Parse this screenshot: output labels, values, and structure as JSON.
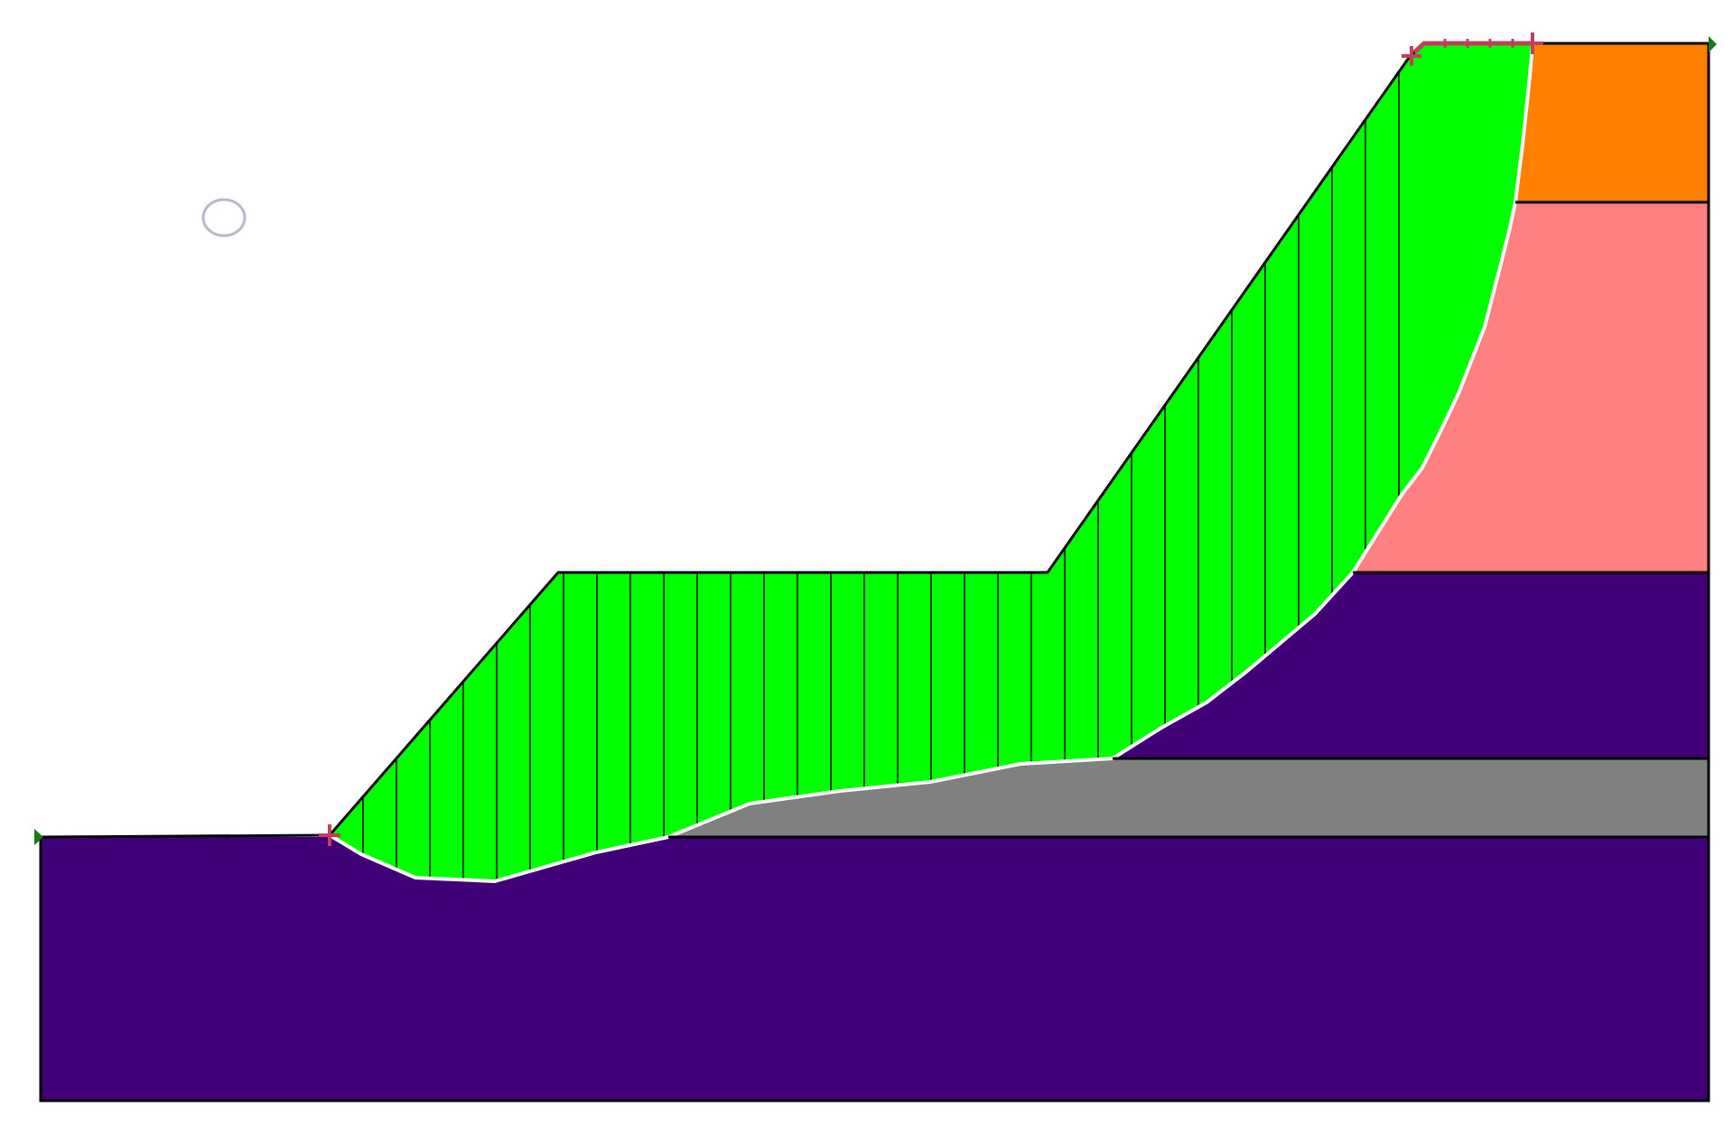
{
  "colors": {
    "background": "#ffffff",
    "bedrock": "#410078",
    "gray_layer": "#808080",
    "pink_layer": "#ff8080",
    "orange_layer": "#ff8000",
    "sliding_mass": "#00ff00",
    "outline": "#000000",
    "slip_surface": "#ffffff",
    "endpoint_marker": "#c0405a",
    "boundary_marker": "#1a7a1a",
    "center_marker": "#b8b8c8"
  },
  "layers": [
    {
      "name": "bedrock",
      "color_key": "bedrock"
    },
    {
      "name": "gray-layer",
      "color_key": "gray_layer"
    },
    {
      "name": "upper-purple-layer",
      "color_key": "bedrock"
    },
    {
      "name": "pink-layer",
      "color_key": "pink_layer"
    },
    {
      "name": "orange-layer",
      "color_key": "orange_layer"
    }
  ],
  "slice_count": 36,
  "icons": {
    "endpoint": "plus-marker-icon",
    "boundary": "triangle-flag-icon",
    "slip_center": "circle-marker-icon"
  }
}
